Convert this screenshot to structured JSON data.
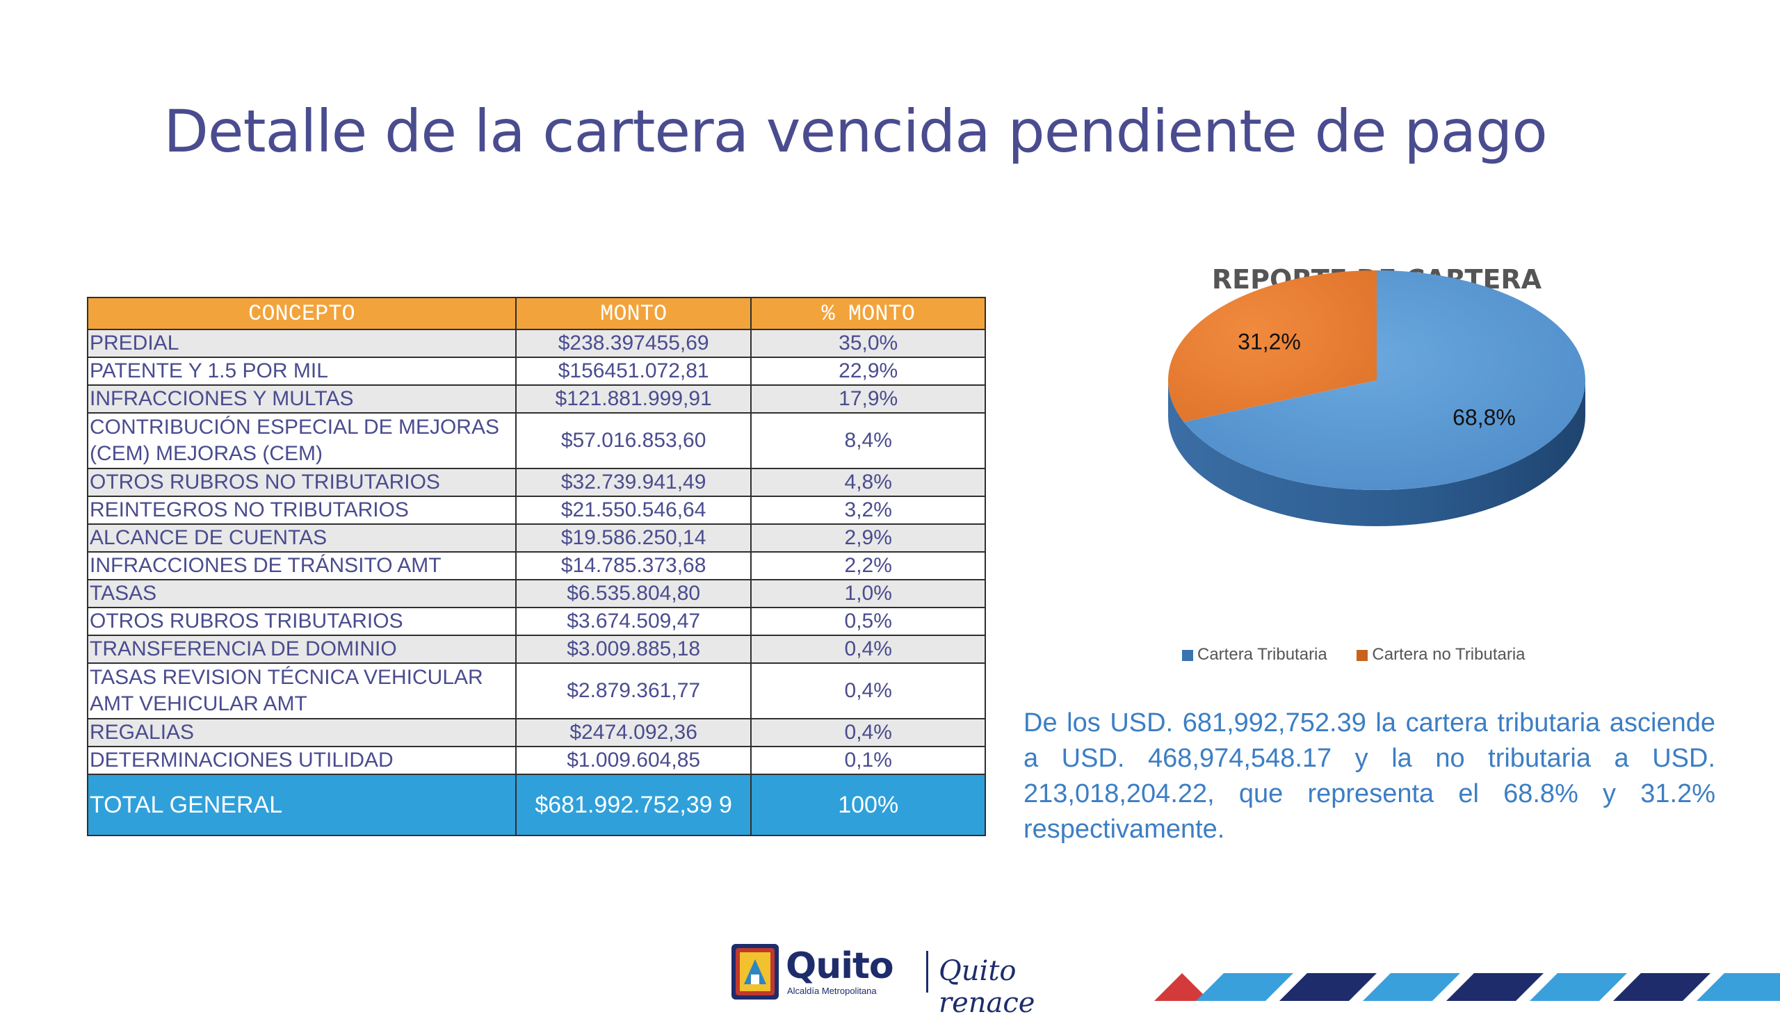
{
  "title": "Detalle de la cartera vencida pendiente de pago",
  "table": {
    "headers": [
      "CONCEPTO",
      "MONTO",
      "% MONTO"
    ],
    "rows": [
      {
        "concept": "PREDIAL",
        "amount": "$238.397455,69",
        "pct": "35,0%"
      },
      {
        "concept": "PATENTE  Y 1.5 POR MIL",
        "amount": "$156451.072,81",
        "pct": "22,9%"
      },
      {
        "concept": "INFRACCIONES Y MULTAS",
        "amount": "$121.881.999,91",
        "pct": "17,9%"
      },
      {
        "concept": "CONTRIBUCIÓN ESPECIAL DE MEJORAS (CEM) MEJORAS (CEM)",
        "amount": "$57.016.853,60",
        "pct": "8,4%"
      },
      {
        "concept": "OTROS RUBROS NO TRIBUTARIOS",
        "amount": "$32.739.941,49",
        "pct": "4,8%"
      },
      {
        "concept": "REINTEGROS NO TRIBUTARIOS",
        "amount": "$21.550.546,64",
        "pct": "3,2%"
      },
      {
        "concept": "ALCANCE DE CUENTAS",
        "amount": "$19.586.250,14",
        "pct": "2,9%"
      },
      {
        "concept": "INFRACCIONES DE TRÁNSITO AMT",
        "amount": "$14.785.373,68",
        "pct": "2,2%"
      },
      {
        "concept": "TASAS",
        "amount": "$6.535.804,80",
        "pct": "1,0%"
      },
      {
        "concept": "OTROS RUBROS TRIBUTARIOS",
        "amount": "$3.674.509,47",
        "pct": "0,5%"
      },
      {
        "concept": "TRANSFERENCIA DE DOMINIO",
        "amount": "$3.009.885,18",
        "pct": "0,4%"
      },
      {
        "concept": "TASAS REVISION TÉCNICA VEHICULAR AMT VEHICULAR AMT",
        "amount": "$2.879.361,77",
        "pct": "0,4%"
      },
      {
        "concept": "REGALIAS",
        "amount": "$2474.092,36",
        "pct": "0,4%"
      },
      {
        "concept": "DETERMINACIONES UTILIDAD",
        "amount": "$1.009.604,85",
        "pct": "0,1%"
      }
    ],
    "total": {
      "concept": "TOTAL GENERAL",
      "amount": "$681.992.752,39 9",
      "pct": "100%"
    }
  },
  "chart": {
    "title": "REPORTE DE CARTERA",
    "legend": [
      {
        "label": "Cartera Tributaria",
        "color": "#5b9bd5"
      },
      {
        "label": "Cartera no Tributaria",
        "color": "#ed7d31"
      }
    ]
  },
  "chart_data": {
    "type": "pie",
    "title": "REPORTE DE CARTERA",
    "categories": [
      "Cartera Tributaria",
      "Cartera no Tributaria"
    ],
    "values": [
      68.8,
      31.2
    ],
    "labels": [
      "68,8%",
      "31,2%"
    ],
    "legend": "bottom"
  },
  "summary": "De los USD. 681,992,752.39 la cartera tributaria asciende a USD. 468,974,548.17 y la no tributaria a USD. 213,018,204.22, que representa el 68.8% y 31.2% respectivamente.",
  "footer": {
    "brand": "Quito",
    "brand_sub": "Alcaldía Metropolitana",
    "slogan": "Quito renace"
  }
}
